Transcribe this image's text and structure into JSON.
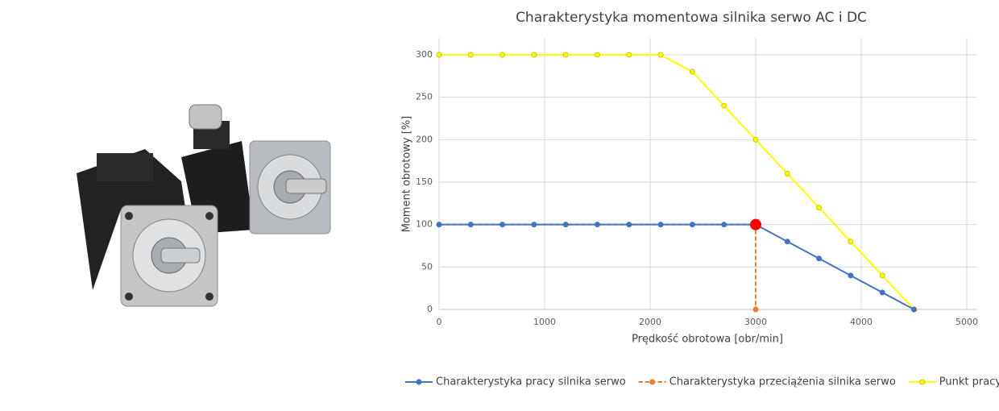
{
  "chart_data": {
    "type": "line",
    "title": "Charakterystyka momentowa silnika serwo AC i DC",
    "x_label": "Prędkość obrotowa [obr/min]",
    "y_label": "Moment obrotowy [%]",
    "xlim": [
      0,
      5000
    ],
    "xticks": [
      0,
      1000,
      2000,
      3000,
      4000,
      5000
    ],
    "ylim": [
      0,
      300
    ],
    "yticks": [
      0,
      50,
      100,
      150,
      200,
      250,
      300
    ],
    "grid": true,
    "legend": "bottom",
    "series": [
      {
        "name": "Charakterystyka pracy silnika serwo",
        "color": "#4472c4",
        "dashed": false,
        "x": [
          0,
          300,
          600,
          900,
          1200,
          1500,
          1800,
          2100,
          2400,
          2700,
          3000,
          3300,
          3600,
          3900,
          4200,
          4500
        ],
        "values": [
          100,
          100,
          100,
          100,
          100,
          100,
          100,
          100,
          100,
          100,
          100,
          80,
          60,
          40,
          20,
          0
        ]
      },
      {
        "name": "Charakterystyka przeciążenia silnika serwo",
        "color": "#ed7d31",
        "dashed": true,
        "x": [
          0,
          3000,
          3000
        ],
        "values": [
          100,
          100,
          0
        ]
      },
      {
        "name": "Punkt pracy",
        "color": "#ffff00",
        "dashed": false,
        "x": [
          0,
          300,
          600,
          900,
          1200,
          1500,
          1800,
          2100,
          2400,
          2700,
          3000,
          3300,
          3600,
          3900,
          4200,
          4500
        ],
        "values": [
          300,
          300,
          300,
          300,
          300,
          300,
          300,
          300,
          280,
          240,
          200,
          160,
          120,
          80,
          40,
          0
        ]
      }
    ],
    "highlight_point": {
      "x": 3000,
      "value": 100,
      "color": "#ff0000"
    }
  }
}
